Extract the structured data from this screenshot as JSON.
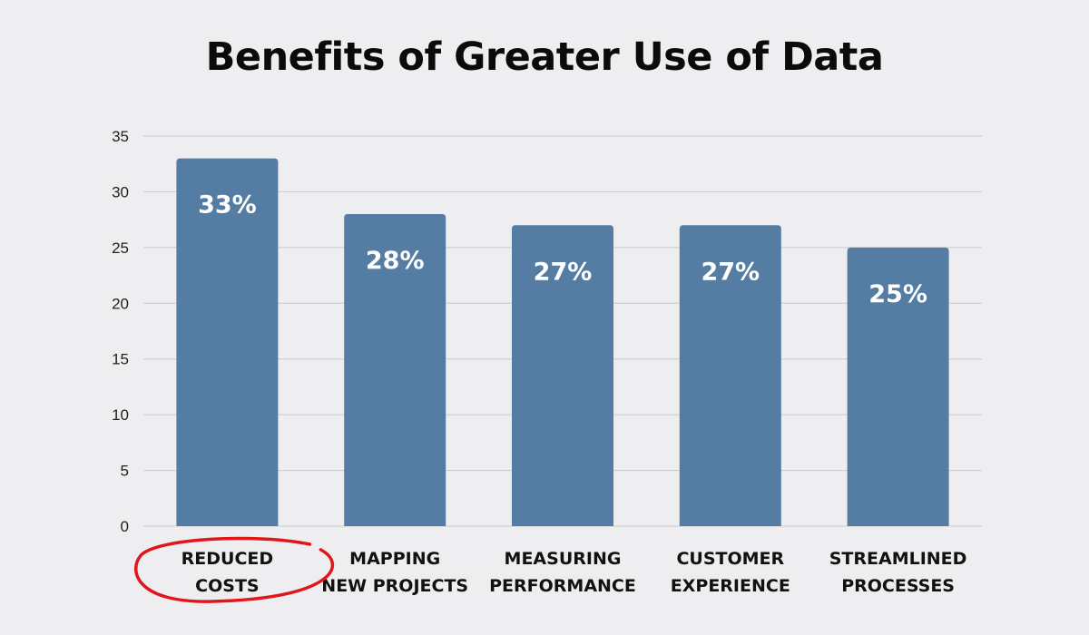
{
  "chart_data": {
    "type": "bar",
    "title": "Benefits of Greater Use of Data",
    "categories": [
      [
        "REDUCED",
        "COSTS"
      ],
      [
        "MAPPING",
        "NEW PROJECTS"
      ],
      [
        "MEASURING",
        "PERFORMANCE"
      ],
      [
        "CUSTOMER",
        "EXPERIENCE"
      ],
      [
        "STREAMLINED",
        "PROCESSES"
      ]
    ],
    "values": [
      33,
      28,
      27,
      27,
      25
    ],
    "data_labels": [
      "33%",
      "28%",
      "27%",
      "27%",
      "25%"
    ],
    "yticks": [
      "0",
      "5",
      "10",
      "15",
      "20",
      "25",
      "30",
      "35"
    ],
    "ylim": [
      0,
      35
    ],
    "grid": true,
    "highlighted_category": "REDUCED COSTS",
    "colors": {
      "bar": "#557ca3",
      "grid": "#c9c9cc",
      "highlight_circle": "#e0161b",
      "data_label": "#ffffff",
      "text": "#111111"
    }
  }
}
